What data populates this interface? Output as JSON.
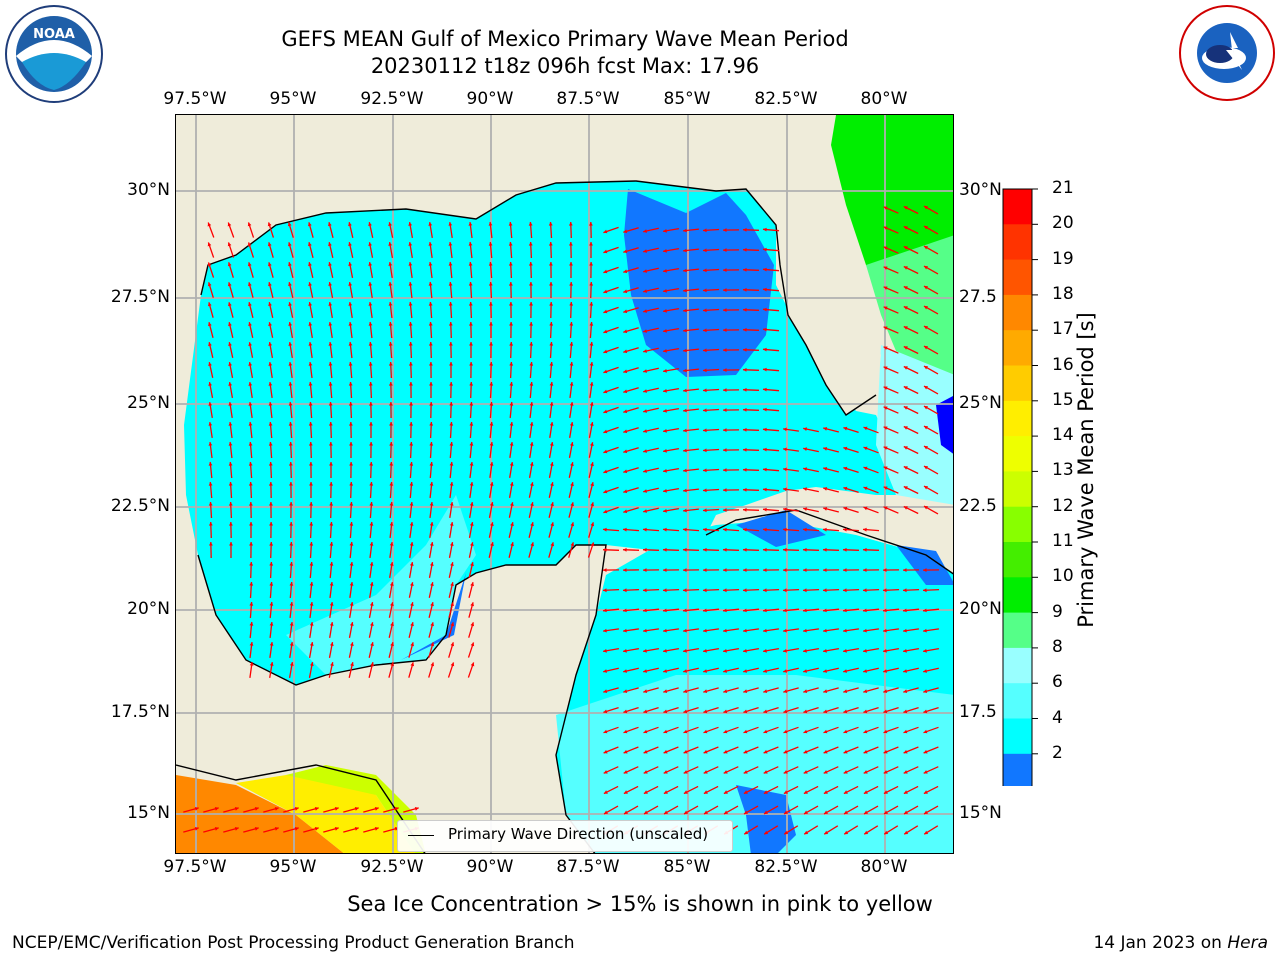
{
  "header": {
    "title": "GEFS MEAN Gulf of Mexico Primary Wave Mean Period",
    "subtitle": "20230112 t18z 096h fcst   Max: 17.96"
  },
  "map": {
    "lon_labels": [
      "97.5°W",
      "95°W",
      "92.5°W",
      "90°W",
      "87.5°W",
      "85°W",
      "82.5°W",
      "80°W"
    ],
    "lat_labels_left": [
      "30°N",
      "27.5°N",
      "25°N",
      "22.5°N",
      "20°N",
      "17.5°N",
      "15°N"
    ],
    "lat_labels_right": [
      "30°N",
      "27.5",
      "25°N",
      "22.5",
      "20°N",
      "17.5",
      "15°N"
    ],
    "lon_range": [
      -98,
      -78.2
    ],
    "lat_range": [
      14,
      31.8
    ],
    "land_color": "#efecda",
    "arrow_color": "#ff0000"
  },
  "legend": {
    "label": "Primary Wave Direction (unscaled)"
  },
  "colorbar": {
    "label": "Primary Wave Mean Period [s]",
    "ticks": [
      "21",
      "20",
      "19",
      "18",
      "17",
      "16",
      "15",
      "14",
      "13",
      "12",
      "11",
      "10",
      "9",
      "8",
      "6",
      "4",
      "2"
    ],
    "colors": [
      "#ff0000",
      "#ff3300",
      "#ff5500",
      "#ff8800",
      "#ffaa00",
      "#ffcc00",
      "#ffee00",
      "#eeff00",
      "#ccff00",
      "#88ff00",
      "#44ee00",
      "#00ee00",
      "#55ff88",
      "#99ffff",
      "#55ffff",
      "#00ffff",
      "#1177ff"
    ],
    "extend_color": "#0000ff"
  },
  "footer": {
    "note": "Sea Ice Concentration > 15% is shown in pink to yellow",
    "left": "NCEP/EMC/Verification Post Processing Product Generation Branch",
    "date": "14 Jan 2023 on",
    "machine": "Hera"
  },
  "logos": {
    "left": "noaa-logo",
    "right": "nws-logo"
  }
}
